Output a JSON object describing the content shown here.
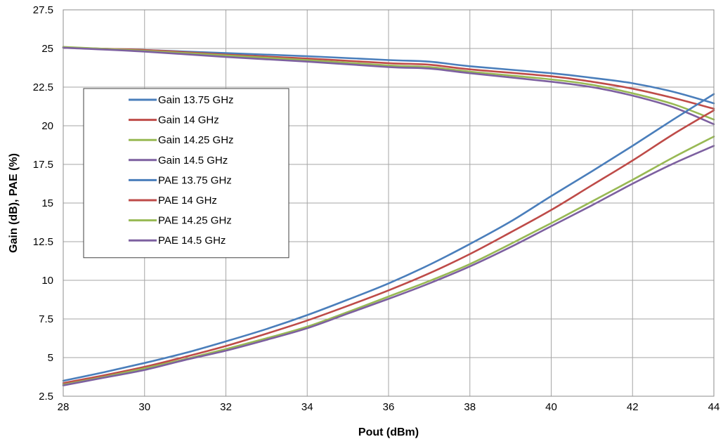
{
  "chart_data": {
    "type": "line",
    "title": "",
    "xlabel": "Pout (dBm)",
    "ylabel": "Gain (dB), PAE (%)",
    "xlim": [
      28,
      44
    ],
    "ylim": [
      2.5,
      27.5
    ],
    "xticks": [
      28,
      30,
      32,
      34,
      36,
      38,
      40,
      42,
      44
    ],
    "yticks": [
      2.5,
      5,
      7.5,
      10,
      12.5,
      15,
      17.5,
      20,
      22.5,
      25,
      27.5
    ],
    "xtick_labels": [
      "28",
      "30",
      "32",
      "34",
      "36",
      "38",
      "40",
      "42",
      "44"
    ],
    "ytick_labels": [
      "2.5",
      "5",
      "7.5",
      "10",
      "12.5",
      "15",
      "17.5",
      "20",
      "22.5",
      "25",
      "27.5"
    ],
    "grid": true,
    "legend_position": "left",
    "series": [
      {
        "name": "Gain 13.75 GHz",
        "color": "#4a7ebb",
        "x": [
          28,
          30,
          32,
          34,
          36,
          37,
          38,
          40,
          41,
          42,
          43,
          44
        ],
        "y": [
          25.05,
          24.9,
          24.7,
          24.5,
          24.25,
          24.15,
          23.85,
          23.4,
          23.1,
          22.75,
          22.2,
          21.45
        ]
      },
      {
        "name": "Gain 14 GHz",
        "color": "#be4b48",
        "x": [
          28,
          30,
          32,
          34,
          36,
          37,
          38,
          40,
          41,
          42,
          43,
          44
        ],
        "y": [
          25.05,
          24.9,
          24.6,
          24.35,
          24.05,
          23.95,
          23.65,
          23.2,
          22.85,
          22.4,
          21.8,
          21.1
        ]
      },
      {
        "name": "Gain 14.25 GHz",
        "color": "#98b954",
        "x": [
          28,
          30,
          32,
          34,
          36,
          37,
          38,
          40,
          41,
          42,
          43,
          44
        ],
        "y": [
          25.1,
          24.85,
          24.55,
          24.25,
          23.9,
          23.8,
          23.5,
          23.0,
          22.65,
          22.1,
          21.4,
          20.4
        ]
      },
      {
        "name": "Gain 14.5 GHz",
        "color": "#7d60a0",
        "x": [
          28,
          30,
          32,
          34,
          36,
          37,
          38,
          40,
          41,
          42,
          43,
          44
        ],
        "y": [
          25.05,
          24.8,
          24.45,
          24.15,
          23.8,
          23.7,
          23.4,
          22.85,
          22.5,
          21.95,
          21.2,
          20.1
        ]
      },
      {
        "name": "PAE  13.75 GHz",
        "color": "#4a7ebb",
        "x": [
          28,
          29,
          30,
          31,
          32,
          33,
          34,
          35,
          36,
          37,
          38,
          39,
          40,
          41,
          42,
          43,
          44
        ],
        "y": [
          3.5,
          4.05,
          4.65,
          5.3,
          6.05,
          6.85,
          7.75,
          8.75,
          9.8,
          11.0,
          12.35,
          13.8,
          15.45,
          17.05,
          18.7,
          20.4,
          22.05
        ]
      },
      {
        "name": "PAE  14 GHz",
        "color": "#be4b48",
        "x": [
          28,
          29,
          30,
          31,
          32,
          33,
          34,
          35,
          36,
          37,
          38,
          39,
          40,
          41,
          42,
          43,
          44
        ],
        "y": [
          3.35,
          3.85,
          4.4,
          5.05,
          5.75,
          6.55,
          7.4,
          8.35,
          9.35,
          10.45,
          11.7,
          13.1,
          14.55,
          16.15,
          17.75,
          19.45,
          21.0
        ]
      },
      {
        "name": "PAE  14.25 GHz",
        "color": "#98b954",
        "x": [
          28,
          29,
          30,
          31,
          32,
          33,
          34,
          35,
          36,
          37,
          38,
          39,
          40,
          41,
          42,
          43,
          44
        ],
        "y": [
          3.25,
          3.75,
          4.3,
          4.9,
          5.55,
          6.25,
          7.0,
          7.95,
          8.95,
          9.95,
          11.05,
          12.35,
          13.7,
          15.1,
          16.5,
          17.95,
          19.3
        ]
      },
      {
        "name": "PAE  14.5 GHz",
        "color": "#7d60a0",
        "x": [
          28,
          29,
          30,
          31,
          32,
          33,
          34,
          35,
          36,
          37,
          38,
          39,
          40,
          41,
          42,
          43,
          44
        ],
        "y": [
          3.2,
          3.7,
          4.2,
          4.85,
          5.45,
          6.15,
          6.9,
          7.85,
          8.8,
          9.8,
          10.9,
          12.15,
          13.5,
          14.85,
          16.25,
          17.55,
          18.7
        ]
      }
    ]
  }
}
